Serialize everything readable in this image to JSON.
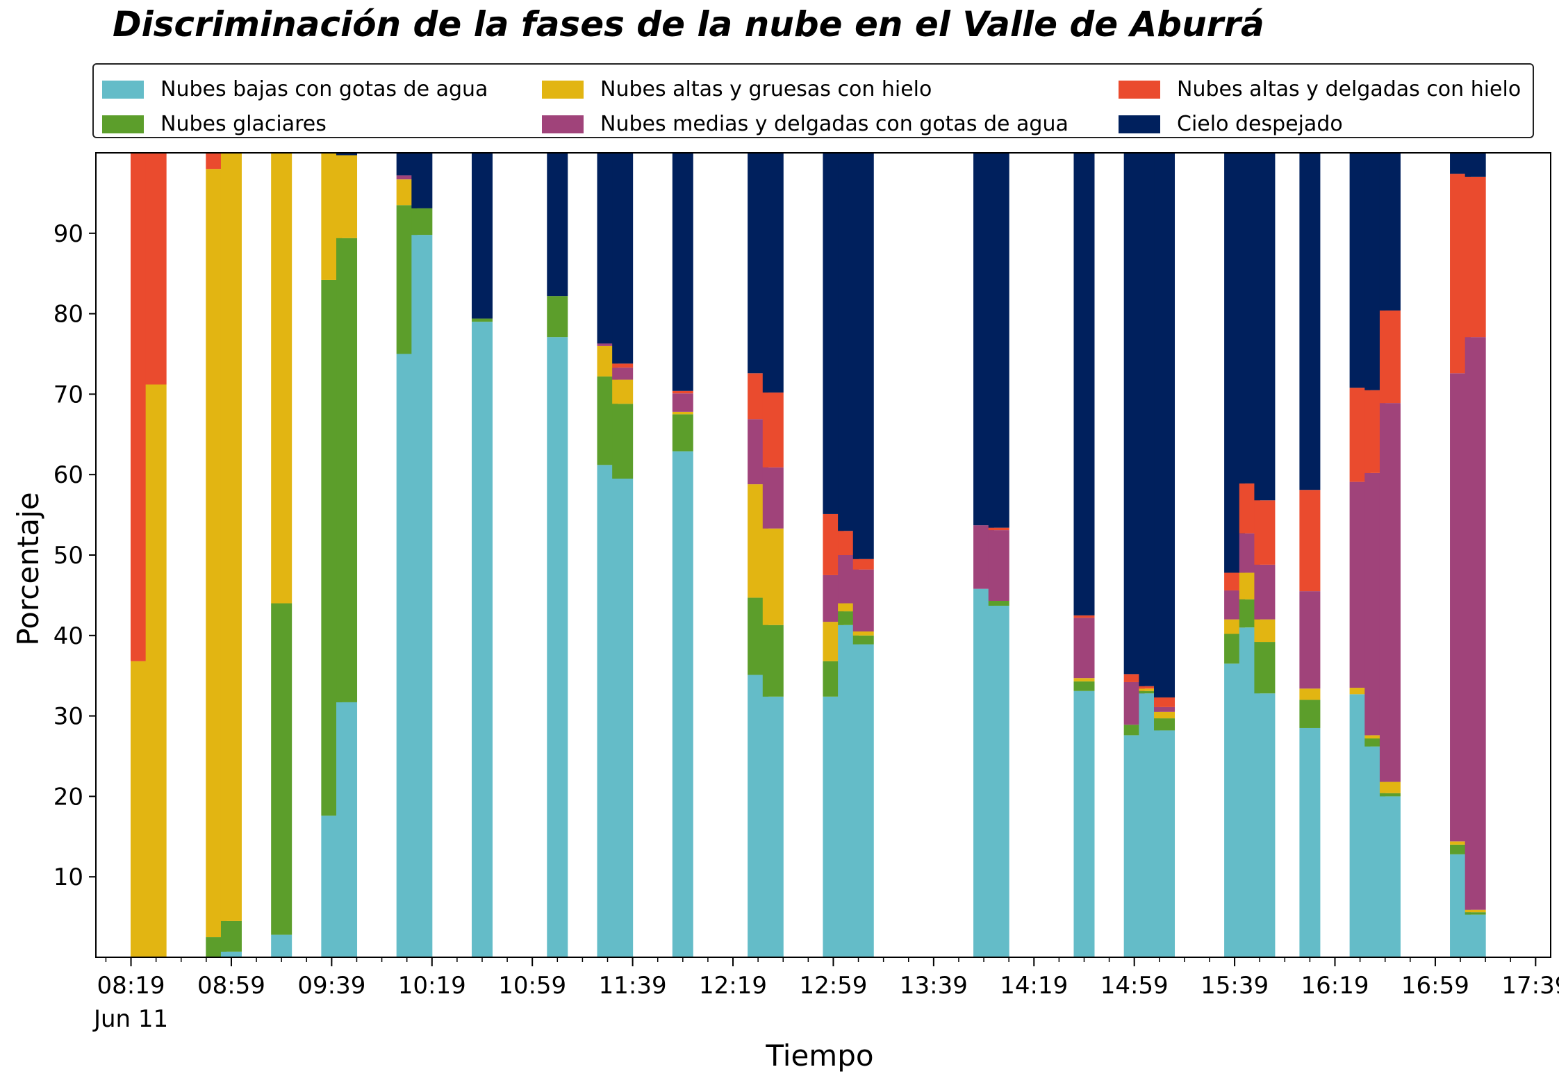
{
  "chart_data": {
    "type": "bar",
    "stacked": true,
    "title": "Discriminación de la fases de la nube en el Valle de Aburrá",
    "xlabel": "Tiempo",
    "ylabel": "Porcentaje",
    "ylim": [
      0,
      100
    ],
    "yticks": [
      10,
      20,
      30,
      40,
      50,
      60,
      70,
      80,
      90
    ],
    "x_range_minutes": [
      485,
      1065
    ],
    "xticks": [
      {
        "minute": 499,
        "label": "08:19",
        "sublabel": "Jun 11"
      },
      {
        "minute": 539,
        "label": "08:59"
      },
      {
        "minute": 579,
        "label": "09:39"
      },
      {
        "minute": 619,
        "label": "10:19"
      },
      {
        "minute": 659,
        "label": "10:59"
      },
      {
        "minute": 699,
        "label": "11:39"
      },
      {
        "minute": 739,
        "label": "12:19"
      },
      {
        "minute": 779,
        "label": "12:59"
      },
      {
        "minute": 819,
        "label": "13:39"
      },
      {
        "minute": 859,
        "label": "14:19"
      },
      {
        "minute": 899,
        "label": "14:59"
      },
      {
        "minute": 939,
        "label": "15:39"
      },
      {
        "minute": 979,
        "label": "16:19"
      },
      {
        "minute": 1019,
        "label": "16:59"
      },
      {
        "minute": 1059,
        "label": "17:39"
      }
    ],
    "legend_position": "top",
    "series": [
      {
        "name": "Nubes bajas con gotas de agua",
        "color": "#64BCC8"
      },
      {
        "name": "Nubes glaciares",
        "color": "#5C9E2B"
      },
      {
        "name": "Nubes altas y gruesas con hielo",
        "color": "#E2B512"
      },
      {
        "name": "Nubes medias y delgadas con gotas de agua",
        "color": "#A0437A"
      },
      {
        "name": "Nubes altas y delgadas con hielo",
        "color": "#EA4B2E"
      },
      {
        "name": "Cielo despejado",
        "color": "#00205D"
      }
    ],
    "time_minutes": [
      503,
      509,
      533,
      539,
      559,
      579,
      585,
      609,
      615,
      639,
      669,
      689,
      695,
      719,
      749,
      755,
      779,
      785,
      791,
      839,
      845,
      879,
      899,
      905,
      911,
      939,
      945,
      951,
      969,
      989,
      995,
      1001,
      1029,
      1035
    ],
    "bars": [
      [
        0,
        0,
        36.8,
        0,
        63.2,
        0
      ],
      [
        0,
        0,
        71.2,
        0,
        28.8,
        0
      ],
      [
        0,
        2.5,
        95.5,
        0,
        2.0,
        0
      ],
      [
        0.7,
        3.8,
        95.5,
        0,
        0,
        0
      ],
      [
        2.8,
        41.2,
        56.0,
        0,
        0,
        0
      ],
      [
        17.6,
        66.6,
        15.8,
        0,
        0,
        0
      ],
      [
        31.7,
        57.7,
        10.3,
        0,
        0,
        0.3
      ],
      [
        75.0,
        18.5,
        3.2,
        0.5,
        0,
        2.8
      ],
      [
        89.8,
        3.3,
        0,
        0,
        0,
        6.9
      ],
      [
        79.0,
        0.4,
        0,
        0,
        0,
        20.6
      ],
      [
        77.1,
        5.1,
        0,
        0,
        0,
        17.8
      ],
      [
        61.2,
        11.0,
        3.8,
        0.3,
        0,
        23.7
      ],
      [
        59.5,
        9.3,
        3.0,
        1.5,
        0.5,
        26.2
      ],
      [
        62.9,
        4.6,
        0.3,
        2.3,
        0.3,
        29.6
      ],
      [
        35.1,
        9.6,
        14.1,
        8.1,
        5.7,
        27.4
      ],
      [
        32.4,
        8.9,
        12.0,
        7.6,
        9.3,
        29.8
      ],
      [
        32.4,
        4.4,
        4.9,
        5.8,
        7.6,
        44.9
      ],
      [
        41.3,
        1.7,
        1.0,
        6.0,
        3.0,
        47.0
      ],
      [
        38.9,
        1.1,
        0.5,
        7.7,
        1.3,
        50.5
      ],
      [
        45.8,
        0,
        0,
        7.9,
        0,
        46.3
      ],
      [
        43.7,
        0.6,
        0,
        8.8,
        0.3,
        46.6
      ],
      [
        33.1,
        1.2,
        0.4,
        7.5,
        0.3,
        57.5
      ],
      [
        27.6,
        1.3,
        0,
        5.3,
        1.0,
        64.8
      ],
      [
        32.8,
        0.3,
        0.3,
        0,
        0.3,
        66.3
      ],
      [
        28.2,
        1.5,
        0.8,
        0.6,
        1.2,
        67.7
      ],
      [
        36.5,
        3.7,
        1.8,
        3.6,
        2.2,
        52.2
      ],
      [
        41.0,
        3.5,
        3.3,
        4.9,
        6.2,
        41.1
      ],
      [
        32.8,
        6.4,
        2.8,
        6.8,
        8.0,
        43.2
      ],
      [
        28.5,
        3.5,
        1.4,
        12.1,
        12.6,
        41.9
      ],
      [
        32.7,
        0,
        0.8,
        25.6,
        11.7,
        29.2
      ],
      [
        26.2,
        1.0,
        0.4,
        32.6,
        10.3,
        29.5
      ],
      [
        20.0,
        0.4,
        1.4,
        47.1,
        11.5,
        19.6
      ],
      [
        12.8,
        1.2,
        0.4,
        58.2,
        24.8,
        2.6
      ],
      [
        5.3,
        0.3,
        0.3,
        71.2,
        19.9,
        3.0
      ]
    ]
  }
}
